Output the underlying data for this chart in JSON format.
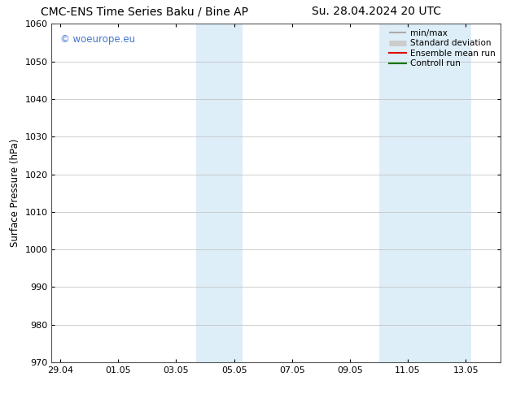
{
  "title_left": "CMC-ENS Time Series Baku / Bine AP",
  "title_right": "Su. 28.04.2024 20 UTC",
  "ylabel": "Surface Pressure (hPa)",
  "ylim": [
    970,
    1060
  ],
  "yticks": [
    970,
    980,
    990,
    1000,
    1010,
    1020,
    1030,
    1040,
    1050,
    1060
  ],
  "x_tick_labels": [
    "29.04",
    "01.05",
    "03.05",
    "05.05",
    "07.05",
    "09.05",
    "11.05",
    "13.05"
  ],
  "x_tick_positions": [
    0,
    2,
    4,
    6,
    8,
    10,
    12,
    14
  ],
  "xlim": [
    -0.3,
    15.2
  ],
  "shaded_regions": [
    {
      "x_start": 4.7,
      "x_end": 6.3
    },
    {
      "x_start": 11.0,
      "x_end": 14.2
    }
  ],
  "shaded_color": "#ddeef8",
  "watermark_text": "© woeurope.eu",
  "watermark_color": "#4477cc",
  "legend_items": [
    {
      "label": "min/max",
      "color": "#aaaaaa",
      "style": "hbar"
    },
    {
      "label": "Standard deviation",
      "color": "#cccccc",
      "style": "hbar"
    },
    {
      "label": "Ensemble mean run",
      "color": "#dd0000",
      "style": "line"
    },
    {
      "label": "Controll run",
      "color": "#007700",
      "style": "line"
    }
  ],
  "background_color": "#ffffff",
  "grid_color": "#bbbbbb",
  "title_fontsize": 10,
  "axis_label_fontsize": 8.5,
  "tick_fontsize": 8,
  "legend_fontsize": 7.5
}
